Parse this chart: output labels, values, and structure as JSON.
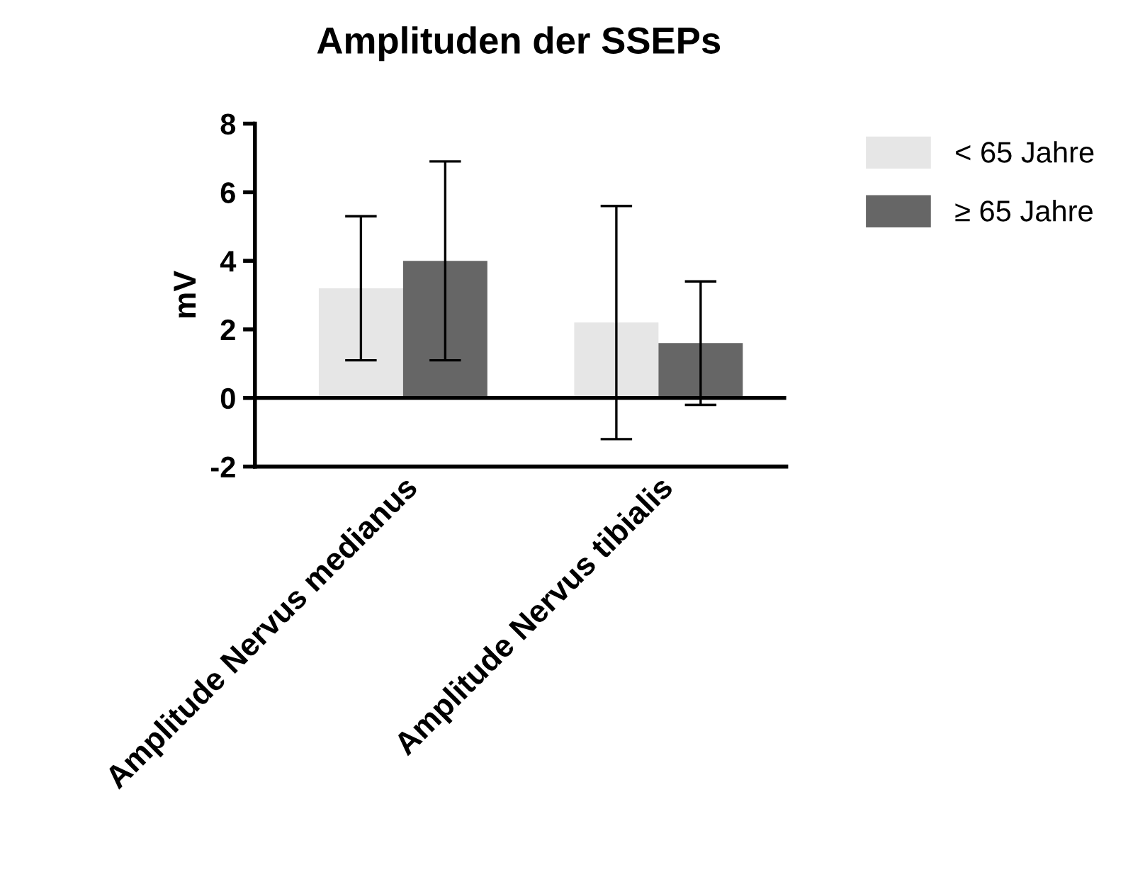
{
  "chart_data": {
    "type": "bar",
    "title": "Amplituden der SSEPs",
    "ylabel": "mV",
    "categories": [
      "Amplitude Nervus medianus",
      "Amplitude Nervus tibialis"
    ],
    "series": [
      {
        "name": "< 65 Jahre",
        "color": "#e6e6e6",
        "values": [
          3.2,
          2.2
        ],
        "errors": [
          [
            1.1,
            5.3
          ],
          [
            -1.2,
            5.6
          ]
        ]
      },
      {
        "name": "≥ 65 Jahre",
        "color": "#666666",
        "values": [
          4.0,
          1.6
        ],
        "errors": [
          [
            1.1,
            6.9
          ],
          [
            -0.2,
            3.4
          ]
        ]
      }
    ],
    "ylim": [
      -2,
      8
    ],
    "yticks": [
      -2,
      0,
      2,
      4,
      6,
      8
    ],
    "ref_lines": [
      {
        "axis": "y",
        "value": 0,
        "color": "#000000"
      }
    ],
    "grid": false,
    "legend": "top right"
  }
}
